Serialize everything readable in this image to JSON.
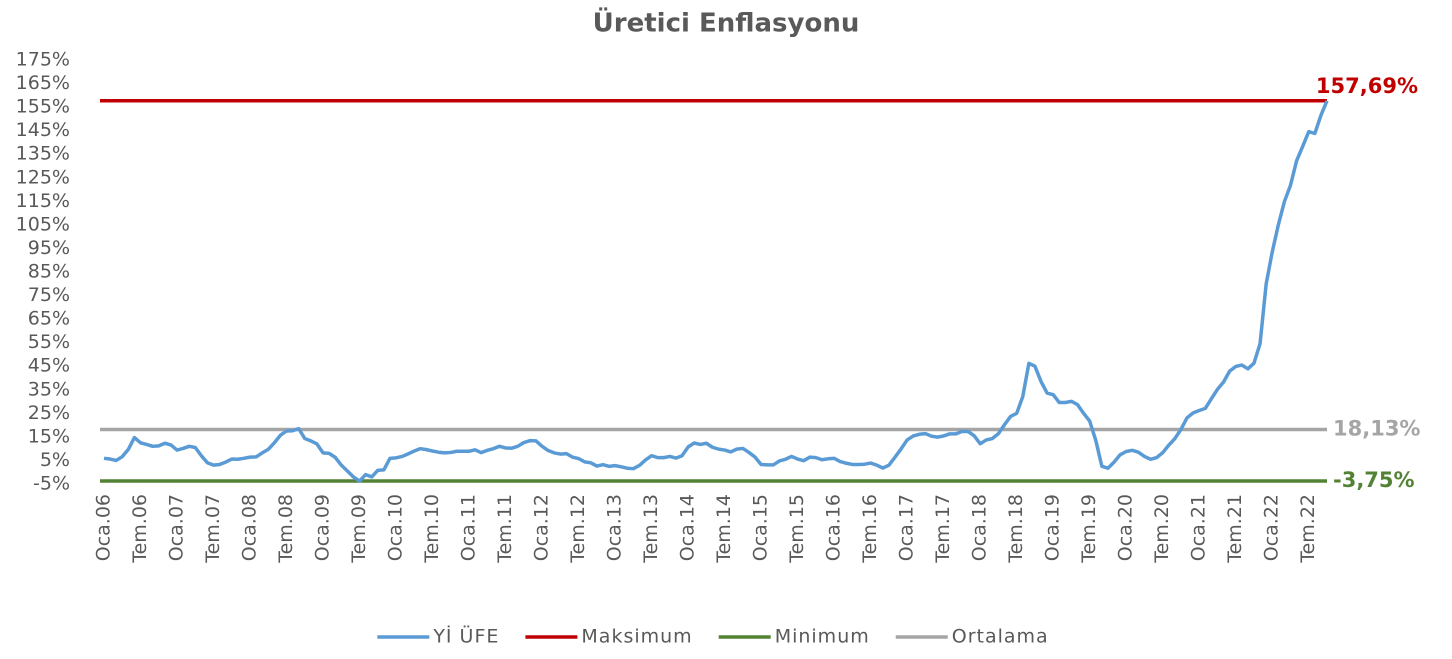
{
  "chart_data": {
    "type": "line",
    "title": "Üretici Enflasyonu",
    "categories": [
      "Oca.06",
      null,
      null,
      null,
      null,
      null,
      "Tem.06",
      null,
      null,
      null,
      null,
      null,
      "Oca.07",
      null,
      null,
      null,
      null,
      null,
      "Tem.07",
      null,
      null,
      null,
      null,
      null,
      "Oca.08",
      null,
      null,
      null,
      null,
      null,
      "Tem.08",
      null,
      null,
      null,
      null,
      null,
      "Oca.09",
      null,
      null,
      null,
      null,
      null,
      "Tem.09",
      null,
      null,
      null,
      null,
      null,
      "Oca.10",
      null,
      null,
      null,
      null,
      null,
      "Tem.10",
      null,
      null,
      null,
      null,
      null,
      "Oca.11",
      null,
      null,
      null,
      null,
      null,
      "Tem.11",
      null,
      null,
      null,
      null,
      null,
      "Oca.12",
      null,
      null,
      null,
      null,
      null,
      "Tem.12",
      null,
      null,
      null,
      null,
      null,
      "Oca.13",
      null,
      null,
      null,
      null,
      null,
      "Tem.13",
      null,
      null,
      null,
      null,
      null,
      "Oca.14",
      null,
      null,
      null,
      null,
      null,
      "Tem.14",
      null,
      null,
      null,
      null,
      null,
      "Oca.15",
      null,
      null,
      null,
      null,
      null,
      "Tem.15",
      null,
      null,
      null,
      null,
      null,
      "Oca.16",
      null,
      null,
      null,
      null,
      null,
      "Tem.16",
      null,
      null,
      null,
      null,
      null,
      "Oca.17",
      null,
      null,
      null,
      null,
      null,
      "Tem.17",
      null,
      null,
      null,
      null,
      null,
      "Oca.18",
      null,
      null,
      null,
      null,
      null,
      "Tem.18",
      null,
      null,
      null,
      null,
      null,
      "Oca.19",
      null,
      null,
      null,
      null,
      null,
      "Tem.19",
      null,
      null,
      null,
      null,
      null,
      "Oca.20",
      null,
      null,
      null,
      null,
      null,
      "Tem.20",
      null,
      null,
      null,
      null,
      null,
      "Oca.21",
      null,
      null,
      null,
      null,
      null,
      "Tem.21",
      null,
      null,
      null,
      null,
      null,
      "Oca.22",
      null,
      null,
      null,
      null,
      null,
      "Tem.22",
      null,
      null,
      null
    ],
    "series": [
      {
        "name": "Yİ ÜFE",
        "color": "#5b9bd5",
        "values": [
          5.9,
          5.6,
          5.0,
          6.6,
          9.7,
          14.7,
          12.5,
          11.8,
          11.0,
          11.2,
          12.3,
          11.6,
          9.4,
          10.1,
          11.0,
          10.5,
          7.0,
          4.0,
          3.0,
          3.3,
          4.3,
          5.6,
          5.5,
          5.9,
          6.4,
          6.5,
          8.2,
          9.7,
          12.5,
          15.7,
          17.5,
          17.6,
          18.5,
          14.3,
          13.3,
          12.0,
          8.2,
          8.0,
          6.3,
          3.0,
          0.5,
          -2.0,
          -3.75,
          -1.0,
          -2.0,
          0.8,
          1.0,
          5.9,
          6.1,
          6.7,
          7.8,
          9.0,
          10.0,
          9.6,
          9.0,
          8.5,
          8.2,
          8.4,
          8.9,
          8.9,
          8.9,
          9.5,
          8.3,
          9.3,
          10.0,
          11.0,
          10.3,
          10.2,
          11.0,
          12.6,
          13.4,
          13.3,
          11.0,
          9.2,
          8.2,
          7.7,
          7.9,
          6.4,
          5.8,
          4.4,
          4.0,
          2.6,
          3.2,
          2.5,
          2.8,
          2.3,
          1.7,
          1.5,
          2.9,
          5.2,
          7.0,
          6.2,
          6.2,
          6.7,
          6.0,
          7.0,
          10.7,
          12.4,
          11.8,
          12.3,
          10.6,
          9.8,
          9.4,
          8.6,
          9.8,
          10.1,
          8.4,
          6.4,
          3.3,
          3.1,
          3.1,
          4.8,
          5.5,
          6.7,
          5.6,
          4.9,
          6.4,
          6.2,
          5.3,
          5.7,
          5.9,
          4.5,
          3.8,
          3.3,
          3.3,
          3.4,
          3.9,
          3.0,
          1.8,
          3.0,
          6.4,
          9.9,
          13.7,
          15.4,
          16.1,
          16.4,
          15.3,
          14.9,
          15.4,
          16.3,
          16.3,
          17.3,
          17.3,
          15.5,
          12.1,
          13.7,
          14.3,
          16.4,
          20.2,
          23.7,
          25.0,
          32.1,
          46.2,
          45.0,
          38.5,
          33.6,
          32.9,
          29.6,
          29.6,
          30.1,
          28.7,
          25.0,
          21.7,
          13.5,
          2.5,
          1.7,
          4.3,
          7.4,
          8.8,
          9.3,
          8.5,
          6.7,
          5.5,
          6.2,
          8.3,
          11.5,
          14.3,
          18.2,
          23.1,
          25.2,
          26.2,
          27.1,
          31.2,
          35.2,
          38.3,
          42.9,
          44.9,
          45.5,
          43.9,
          46.3,
          54.6,
          79.9,
          93.5,
          105.0,
          114.9,
          121.8,
          132.2,
          138.3,
          144.6,
          143.8,
          151.5,
          157.69
        ]
      }
    ],
    "reference_lines": [
      {
        "name": "Maksimum",
        "color": "#c00000",
        "value": 157.69,
        "value_label": "157,69%"
      },
      {
        "name": "Minimum",
        "color": "#548235",
        "value": -3.75,
        "value_label": "-3,75%"
      },
      {
        "name": "Ortalama",
        "color": "#a5a5a5",
        "value": 18.13,
        "value_label": "18,13%"
      }
    ],
    "ylim": [
      -5,
      175
    ],
    "yticks": [
      {
        "value": -5,
        "label": "-5%"
      },
      {
        "value": 5,
        "label": "5%"
      },
      {
        "value": 15,
        "label": "15%"
      },
      {
        "value": 25,
        "label": "25%"
      },
      {
        "value": 35,
        "label": "35%"
      },
      {
        "value": 45,
        "label": "45%"
      },
      {
        "value": 55,
        "label": "55%"
      },
      {
        "value": 65,
        "label": "65%"
      },
      {
        "value": 75,
        "label": "75%"
      },
      {
        "value": 85,
        "label": "85%"
      },
      {
        "value": 95,
        "label": "95%"
      },
      {
        "value": 105,
        "label": "105%"
      },
      {
        "value": 115,
        "label": "115%"
      },
      {
        "value": 125,
        "label": "125%"
      },
      {
        "value": 135,
        "label": "135%"
      },
      {
        "value": 145,
        "label": "145%"
      },
      {
        "value": 155,
        "label": "155%"
      },
      {
        "value": 165,
        "label": "165%"
      },
      {
        "value": 175,
        "label": "175%"
      }
    ],
    "grid": false,
    "legend": "bottom"
  }
}
